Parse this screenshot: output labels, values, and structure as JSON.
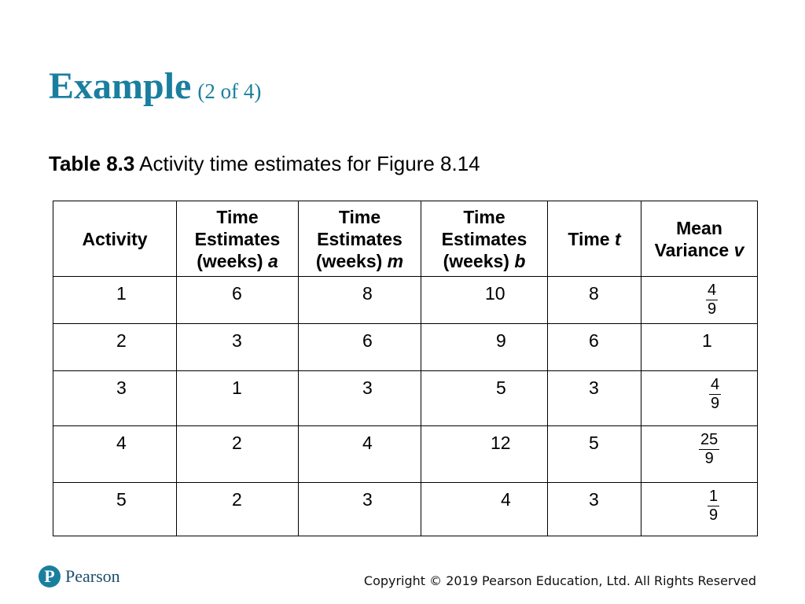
{
  "title": {
    "main": "Example",
    "sub": "(2 of 4)"
  },
  "caption": {
    "label": "Table 8.3",
    "text": "Activity time estimates for Figure 8.14"
  },
  "table": {
    "headers": {
      "activity": "Activity",
      "a": {
        "l1": "Time",
        "l2": "Estimates",
        "l3": "(weeks)",
        "var": "a"
      },
      "m": {
        "l1": "Time",
        "l2": "Estimates",
        "l3": "(weeks)",
        "var": "m"
      },
      "b": {
        "l1": "Time",
        "l2": "Estimates",
        "l3": "(weeks)",
        "var": "b"
      },
      "t": {
        "text": "Time",
        "var": "t"
      },
      "v": {
        "l1": "Mean",
        "l2": "Variance",
        "var": "v"
      }
    },
    "rows": [
      {
        "activity": "1",
        "a": "6",
        "m": "8",
        "b": "10",
        "t": "8",
        "v_num": "4",
        "v_den": "9"
      },
      {
        "activity": "2",
        "a": "3",
        "m": "6",
        "b": "9",
        "t": "6",
        "v": "1"
      },
      {
        "activity": "3",
        "a": "1",
        "m": "3",
        "b": "5",
        "t": "3",
        "v_num": "4",
        "v_den": "9"
      },
      {
        "activity": "4",
        "a": "2",
        "m": "4",
        "b": "12",
        "t": "5",
        "v_num": "25",
        "v_den": "9"
      },
      {
        "activity": "5",
        "a": "2",
        "m": "3",
        "b": "4",
        "t": "3",
        "v_num": "1",
        "v_den": "9"
      }
    ]
  },
  "footer": {
    "logo_letter": "P",
    "logo_text": "Pearson",
    "copyright": "Copyright © 2019 Pearson Education, Ltd. All Rights Reserved"
  },
  "colors": {
    "title": "#1a7f9f",
    "logo": "#1a7f9f"
  }
}
